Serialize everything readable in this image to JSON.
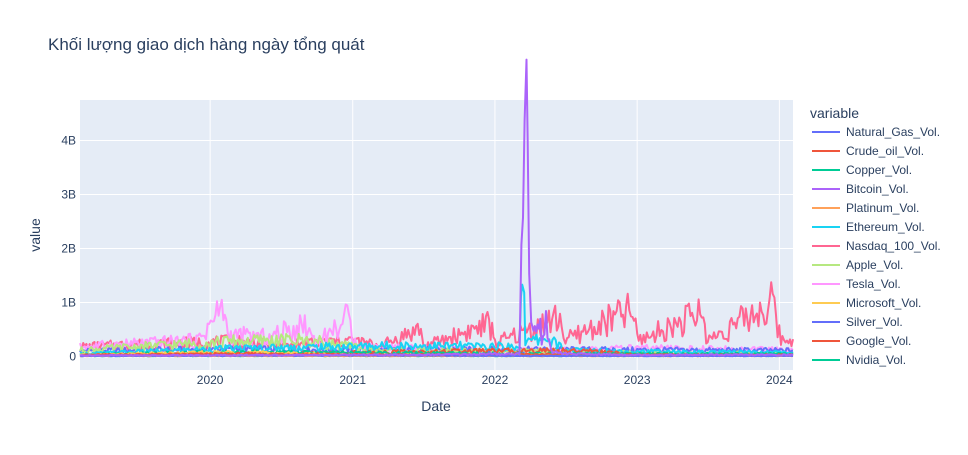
{
  "chart_data": {
    "type": "line",
    "title": "Khối lượng giao dịch hàng ngày tổng quát",
    "xlabel": "Date",
    "ylabel": "value",
    "xlim": [
      "2019-02-01",
      "2024-02-05"
    ],
    "ylim": [
      -0.25,
      4.75
    ],
    "x_ticks": [
      {
        "value": "2020-01-01",
        "label": "2020"
      },
      {
        "value": "2021-01-01",
        "label": "2021"
      },
      {
        "value": "2022-01-01",
        "label": "2022"
      },
      {
        "value": "2023-01-01",
        "label": "2023"
      },
      {
        "value": "2024-01-01",
        "label": "2024"
      }
    ],
    "y_ticks": [
      {
        "value": 0,
        "label": "0"
      },
      {
        "value": 1,
        "label": "1B"
      },
      {
        "value": 2,
        "label": "2B"
      },
      {
        "value": 3,
        "label": "3B"
      },
      {
        "value": 4,
        "label": "4B"
      }
    ],
    "grid": true,
    "legend_title": "variable",
    "legend_position": "right",
    "series": [
      {
        "name": "Natural_Gas_Vol.",
        "color": "#636efa",
        "values": [
          [
            "2019-02-01",
            0.11
          ],
          [
            "2019-08-01",
            0.12
          ],
          [
            "2020-03-01",
            0.14
          ],
          [
            "2021-01-01",
            0.12
          ],
          [
            "2022-01-01",
            0.13
          ],
          [
            "2023-01-01",
            0.12
          ],
          [
            "2024-02-05",
            0.11
          ]
        ]
      },
      {
        "name": "Crude_oil_Vol.",
        "color": "#EF553B",
        "values": [
          [
            "2019-02-01",
            0.03
          ],
          [
            "2020-04-01",
            0.05
          ],
          [
            "2021-06-01",
            0.03
          ],
          [
            "2022-03-01",
            0.04
          ],
          [
            "2023-06-01",
            0.03
          ],
          [
            "2024-02-05",
            0.03
          ]
        ]
      },
      {
        "name": "Copper_Vol.",
        "color": "#00cc96",
        "values": [
          [
            "2019-02-01",
            0.01
          ],
          [
            "2021-01-01",
            0.01
          ],
          [
            "2022-06-01",
            0.01
          ],
          [
            "2024-02-05",
            0.01
          ]
        ]
      },
      {
        "name": "Bitcoin_Vol.",
        "color": "#ab63fa",
        "values": [
          [
            "2019-02-01",
            0.02
          ],
          [
            "2021-06-01",
            0.03
          ],
          [
            "2022-03-05",
            0.05
          ],
          [
            "2022-03-10",
            3.2
          ],
          [
            "2022-03-14",
            2.6
          ],
          [
            "2022-03-18",
            3.6
          ],
          [
            "2022-03-23",
            4.48
          ],
          [
            "2022-03-26",
            3.1
          ],
          [
            "2022-03-30",
            2.2
          ],
          [
            "2022-04-04",
            0.55
          ],
          [
            "2022-04-10",
            0.62
          ],
          [
            "2022-04-17",
            0.45
          ],
          [
            "2022-04-24",
            0.6
          ],
          [
            "2022-05-01",
            0.38
          ],
          [
            "2022-05-08",
            0.65
          ],
          [
            "2022-05-12",
            1.05
          ],
          [
            "2022-05-16",
            0.3
          ],
          [
            "2022-05-25",
            0.1
          ],
          [
            "2022-07-01",
            0.05
          ],
          [
            "2023-01-01",
            0.03
          ],
          [
            "2024-02-05",
            0.03
          ]
        ]
      },
      {
        "name": "Platinum_Vol.",
        "color": "#FFA15A",
        "values": [
          [
            "2019-02-01",
            0.01
          ],
          [
            "2021-01-01",
            0.01
          ],
          [
            "2022-06-01",
            0.01
          ],
          [
            "2024-02-05",
            0.01
          ]
        ]
      },
      {
        "name": "Ethereum_Vol.",
        "color": "#19d3f3",
        "values": [
          [
            "2019-02-01",
            0.05
          ],
          [
            "2020-03-01",
            0.15
          ],
          [
            "2021-05-01",
            0.2
          ],
          [
            "2022-03-05",
            0.18
          ],
          [
            "2022-03-09",
            1.55
          ],
          [
            "2022-03-12",
            1.3
          ],
          [
            "2022-03-17",
            1.8
          ],
          [
            "2022-03-20",
            0.25
          ],
          [
            "2022-05-12",
            0.35
          ],
          [
            "2022-07-01",
            0.12
          ],
          [
            "2023-06-01",
            0.08
          ],
          [
            "2024-02-05",
            0.08
          ]
        ]
      },
      {
        "name": "Nasdaq_100_Vol.",
        "color": "#FF6692",
        "values": [
          [
            "2019-02-01",
            0.18
          ],
          [
            "2019-06-01",
            0.22
          ],
          [
            "2020-03-15",
            0.28
          ],
          [
            "2020-07-01",
            0.2
          ],
          [
            "2020-12-18",
            0.3
          ],
          [
            "2021-03-15",
            0.2
          ],
          [
            "2021-06-25",
            0.52
          ],
          [
            "2021-07-01",
            0.18
          ],
          [
            "2021-12-17",
            0.6
          ],
          [
            "2022-01-05",
            0.25
          ],
          [
            "2022-06-17",
            0.72
          ],
          [
            "2022-07-01",
            0.3
          ],
          [
            "2022-12-16",
            0.85
          ],
          [
            "2023-01-05",
            0.3
          ],
          [
            "2023-06-16",
            0.8
          ],
          [
            "2023-07-01",
            0.3
          ],
          [
            "2023-12-15",
            0.98
          ],
          [
            "2024-01-05",
            0.3
          ],
          [
            "2024-02-05",
            0.32
          ]
        ]
      },
      {
        "name": "Apple_Vol.",
        "color": "#B6E880",
        "values": [
          [
            "2019-02-01",
            0.12
          ],
          [
            "2020-03-01",
            0.28
          ],
          [
            "2020-09-01",
            0.3
          ],
          [
            "2021-03-01",
            0.12
          ],
          [
            "2022-03-01",
            0.1
          ],
          [
            "2023-03-01",
            0.07
          ],
          [
            "2024-02-05",
            0.06
          ]
        ]
      },
      {
        "name": "Tesla_Vol.",
        "color": "#FF97FF",
        "values": [
          [
            "2019-02-01",
            0.18
          ],
          [
            "2019-12-01",
            0.3
          ],
          [
            "2020-02-04",
            0.92
          ],
          [
            "2020-02-15",
            0.4
          ],
          [
            "2020-06-01",
            0.35
          ],
          [
            "2020-08-31",
            0.6
          ],
          [
            "2020-10-01",
            0.25
          ],
          [
            "2020-12-18",
            0.7
          ],
          [
            "2021-01-15",
            0.2
          ],
          [
            "2022-01-01",
            0.1
          ],
          [
            "2023-01-01",
            0.15
          ],
          [
            "2024-02-05",
            0.12
          ]
        ]
      },
      {
        "name": "Microsoft_Vol.",
        "color": "#FECB52",
        "values": [
          [
            "2019-02-01",
            0.03
          ],
          [
            "2020-03-15",
            0.08
          ],
          [
            "2021-01-01",
            0.03
          ],
          [
            "2022-06-01",
            0.03
          ],
          [
            "2024-02-05",
            0.02
          ]
        ]
      },
      {
        "name": "Silver_Vol.",
        "color": "#636efa",
        "values": [
          [
            "2019-02-01",
            0.01
          ],
          [
            "2021-02-01",
            0.02
          ],
          [
            "2022-06-01",
            0.01
          ],
          [
            "2024-02-05",
            0.01
          ]
        ]
      },
      {
        "name": "Google_Vol.",
        "color": "#EF553B",
        "values": [
          [
            "2019-02-01",
            0.03
          ],
          [
            "2020-03-15",
            0.05
          ],
          [
            "2022-07-15",
            0.12
          ],
          [
            "2023-01-01",
            0.04
          ],
          [
            "2024-02-05",
            0.03
          ]
        ]
      },
      {
        "name": "Nvidia_Vol.",
        "color": "#00cc96",
        "values": [
          [
            "2019-02-01",
            0.04
          ],
          [
            "2020-03-15",
            0.08
          ],
          [
            "2021-07-20",
            0.06
          ],
          [
            "2022-06-01",
            0.05
          ],
          [
            "2023-06-01",
            0.05
          ],
          [
            "2024-02-05",
            0.05
          ]
        ]
      }
    ]
  }
}
